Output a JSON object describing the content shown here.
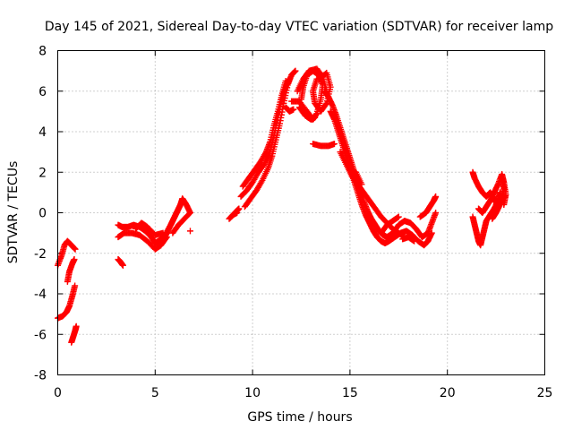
{
  "chart_data": {
    "type": "scatter",
    "title": "Day 145 of 2021, Sidereal Day-to-day VTEC variation (SDTVAR) for receiver lamp",
    "xlabel": "GPS time / hours",
    "ylabel": "SDTVAR / TECUs",
    "xlim": [
      0,
      25
    ],
    "ylim": [
      -8,
      8
    ],
    "xticks": [
      0,
      5,
      10,
      15,
      20,
      25
    ],
    "yticks": [
      -8,
      -6,
      -4,
      -2,
      0,
      2,
      4,
      6,
      8
    ],
    "xtick_labels": [
      "0",
      "5",
      "10",
      "15",
      "20",
      "25"
    ],
    "ytick_labels": [
      "-8",
      "-6",
      "-4",
      "-2",
      "0",
      "2",
      "4",
      "6",
      "8"
    ],
    "grid": true,
    "marker": "plus",
    "series": [
      {
        "name": "SDTVAR",
        "color": "#ff0000",
        "tracks": [
          [
            [
              0.0,
              -2.6
            ],
            [
              0.2,
              -2.1
            ],
            [
              0.35,
              -1.6
            ],
            [
              0.5,
              -1.4
            ],
            [
              0.7,
              -1.6
            ],
            [
              0.9,
              -1.8
            ]
          ],
          [
            [
              0.0,
              -5.2
            ],
            [
              0.25,
              -5.1
            ],
            [
              0.45,
              -4.9
            ],
            [
              0.6,
              -4.6
            ],
            [
              0.75,
              -4.1
            ],
            [
              0.88,
              -3.6
            ]
          ],
          [
            [
              0.5,
              -3.4
            ],
            [
              0.6,
              -2.9
            ],
            [
              0.75,
              -2.5
            ],
            [
              0.85,
              -2.3
            ]
          ],
          [
            [
              0.7,
              -6.4
            ],
            [
              0.8,
              -6.1
            ],
            [
              0.9,
              -5.8
            ],
            [
              0.95,
              -5.6
            ]
          ],
          [
            [
              3.1,
              -2.3
            ],
            [
              3.2,
              -2.4
            ],
            [
              3.35,
              -2.6
            ]
          ],
          [
            [
              3.1,
              -0.6
            ],
            [
              3.3,
              -0.7
            ],
            [
              3.6,
              -0.7
            ],
            [
              3.9,
              -0.6
            ],
            [
              4.2,
              -0.7
            ],
            [
              4.5,
              -0.9
            ],
            [
              4.8,
              -1.2
            ],
            [
              5.0,
              -1.5
            ],
            [
              5.3,
              -1.3
            ],
            [
              5.6,
              -1.0
            ]
          ],
          [
            [
              3.1,
              -1.2
            ],
            [
              3.4,
              -1.0
            ],
            [
              3.8,
              -1.0
            ],
            [
              4.2,
              -1.1
            ],
            [
              4.6,
              -1.4
            ],
            [
              5.0,
              -1.8
            ],
            [
              5.3,
              -1.6
            ],
            [
              5.6,
              -1.2
            ]
          ],
          [
            [
              4.0,
              -0.8
            ],
            [
              4.3,
              -0.5
            ],
            [
              4.6,
              -0.7
            ],
            [
              5.0,
              -1.1
            ],
            [
              5.4,
              -1.0
            ]
          ],
          [
            [
              5.5,
              -1.2
            ],
            [
              5.7,
              -0.8
            ],
            [
              5.9,
              -0.4
            ],
            [
              6.1,
              0.0
            ],
            [
              6.3,
              0.4
            ],
            [
              6.4,
              0.7
            ],
            [
              6.6,
              0.4
            ],
            [
              6.8,
              0.0
            ],
            [
              6.5,
              -0.3
            ],
            [
              6.2,
              -0.6
            ],
            [
              5.9,
              -1.0
            ]
          ],
          [
            [
              5.2,
              -1.5
            ],
            [
              5.5,
              -1.1
            ],
            [
              5.8,
              -0.6
            ],
            [
              6.0,
              -0.2
            ],
            [
              6.2,
              0.2
            ],
            [
              6.4,
              0.6
            ]
          ],
          [
            [
              6.8,
              -0.9
            ]
          ],
          [
            [
              8.8,
              -0.3
            ],
            [
              9.0,
              -0.1
            ],
            [
              9.2,
              0.1
            ],
            [
              9.3,
              0.2
            ]
          ],
          [
            [
              9.0,
              -0.1
            ],
            [
              9.2,
              0.0
            ]
          ],
          [
            [
              9.6,
              0.3
            ],
            [
              9.9,
              0.7
            ],
            [
              10.2,
              1.1
            ],
            [
              10.5,
              1.6
            ],
            [
              10.8,
              2.2
            ],
            [
              11.0,
              2.8
            ],
            [
              11.2,
              3.6
            ],
            [
              11.4,
              4.4
            ],
            [
              11.6,
              5.4
            ],
            [
              11.8,
              6.3
            ],
            [
              12.0,
              6.8
            ],
            [
              12.2,
              7.0
            ]
          ],
          [
            [
              9.4,
              0.8
            ],
            [
              9.7,
              1.1
            ],
            [
              10.0,
              1.5
            ],
            [
              10.3,
              2.0
            ],
            [
              10.6,
              2.4
            ],
            [
              10.9,
              3.0
            ],
            [
              11.1,
              3.8
            ],
            [
              11.3,
              4.7
            ],
            [
              11.5,
              5.6
            ],
            [
              11.7,
              6.2
            ],
            [
              11.9,
              6.6
            ]
          ],
          [
            [
              9.5,
              1.3
            ],
            [
              9.8,
              1.7
            ],
            [
              10.1,
              2.1
            ],
            [
              10.4,
              2.5
            ],
            [
              10.7,
              3.0
            ],
            [
              10.9,
              3.5
            ],
            [
              11.1,
              4.3
            ],
            [
              11.3,
              5.0
            ],
            [
              11.5,
              5.8
            ],
            [
              11.7,
              6.5
            ]
          ],
          [
            [
              11.7,
              5.2
            ],
            [
              11.9,
              5.0
            ],
            [
              12.1,
              5.1
            ]
          ],
          [
            [
              12.0,
              5.5
            ],
            [
              12.4,
              5.5
            ],
            [
              12.8,
              5.0
            ],
            [
              13.1,
              4.6
            ],
            [
              13.3,
              4.9
            ],
            [
              13.5,
              5.6
            ],
            [
              13.6,
              6.3
            ],
            [
              13.4,
              6.8
            ],
            [
              13.1,
              7.0
            ],
            [
              12.8,
              6.8
            ],
            [
              12.6,
              6.2
            ],
            [
              12.5,
              5.6
            ]
          ],
          [
            [
              12.3,
              6.0
            ],
            [
              12.6,
              6.6
            ],
            [
              12.9,
              7.0
            ],
            [
              13.3,
              7.1
            ],
            [
              13.6,
              6.7
            ],
            [
              13.8,
              6.0
            ]
          ],
          [
            [
              12.4,
              5.2
            ],
            [
              12.7,
              4.8
            ],
            [
              13.0,
              4.6
            ],
            [
              13.2,
              4.7
            ]
          ],
          [
            [
              13.7,
              6.0
            ],
            [
              13.9,
              5.7
            ],
            [
              14.1,
              5.3
            ],
            [
              14.3,
              4.8
            ],
            [
              14.5,
              4.2
            ],
            [
              14.7,
              3.6
            ],
            [
              14.9,
              3.0
            ],
            [
              15.1,
              2.4
            ],
            [
              15.3,
              1.8
            ],
            [
              15.5,
              1.2
            ],
            [
              15.7,
              0.6
            ],
            [
              15.9,
              0.1
            ],
            [
              16.1,
              -0.3
            ],
            [
              16.3,
              -0.6
            ],
            [
              16.5,
              -0.9
            ],
            [
              16.7,
              -1.1
            ],
            [
              16.9,
              -1.2
            ],
            [
              17.2,
              -1.0
            ],
            [
              17.5,
              -0.6
            ],
            [
              17.8,
              -0.4
            ],
            [
              18.1,
              -0.5
            ],
            [
              18.4,
              -0.8
            ],
            [
              18.7,
              -1.2
            ],
            [
              19.0,
              -1.0
            ],
            [
              19.2,
              -0.5
            ],
            [
              19.4,
              0.0
            ]
          ],
          [
            [
              14.0,
              5.0
            ],
            [
              14.2,
              4.6
            ],
            [
              14.4,
              4.0
            ],
            [
              14.6,
              3.4
            ],
            [
              14.8,
              2.8
            ],
            [
              15.0,
              2.2
            ],
            [
              15.2,
              1.6
            ],
            [
              15.4,
              1.0
            ],
            [
              15.6,
              0.4
            ],
            [
              15.8,
              -0.1
            ],
            [
              16.0,
              -0.5
            ],
            [
              16.2,
              -0.9
            ],
            [
              16.4,
              -1.2
            ],
            [
              16.6,
              -1.4
            ],
            [
              16.8,
              -1.5
            ],
            [
              17.0,
              -1.4
            ],
            [
              17.3,
              -1.2
            ],
            [
              17.6,
              -1.0
            ],
            [
              17.9,
              -0.9
            ],
            [
              18.2,
              -1.1
            ],
            [
              18.5,
              -1.4
            ],
            [
              18.8,
              -1.6
            ],
            [
              19.0,
              -1.4
            ],
            [
              19.2,
              -1.0
            ]
          ],
          [
            [
              14.5,
              3.0
            ],
            [
              14.8,
              2.4
            ],
            [
              15.1,
              1.8
            ],
            [
              15.4,
              1.4
            ],
            [
              15.7,
              1.0
            ],
            [
              16.0,
              0.6
            ],
            [
              16.3,
              0.2
            ],
            [
              16.6,
              -0.2
            ],
            [
              16.9,
              -0.5
            ],
            [
              17.2,
              -0.8
            ],
            [
              17.5,
              -1.0
            ],
            [
              17.8,
              -1.2
            ]
          ],
          [
            [
              13.1,
              3.4
            ],
            [
              13.5,
              3.3
            ],
            [
              13.9,
              3.3
            ],
            [
              14.2,
              3.4
            ]
          ],
          [
            [
              13.4,
              6.6
            ],
            [
              13.8,
              6.9
            ],
            [
              14.0,
              6.2
            ],
            [
              13.8,
              5.4
            ],
            [
              13.5,
              5.0
            ],
            [
              13.2,
              5.4
            ],
            [
              13.1,
              6.0
            ],
            [
              13.3,
              6.6
            ]
          ],
          [
            [
              15.0,
              2.1
            ],
            [
              15.3,
              2.0
            ],
            [
              15.6,
              1.4
            ]
          ],
          [
            [
              16.6,
              -1.0
            ],
            [
              16.9,
              -0.6
            ],
            [
              17.2,
              -0.4
            ],
            [
              17.5,
              -0.2
            ]
          ],
          [
            [
              18.6,
              -0.2
            ],
            [
              18.9,
              0.0
            ],
            [
              19.1,
              0.3
            ],
            [
              19.3,
              0.6
            ],
            [
              19.4,
              0.8
            ]
          ],
          [
            [
              17.7,
              -1.3
            ],
            [
              18.0,
              -1.2
            ],
            [
              18.3,
              -1.4
            ]
          ],
          [
            [
              21.3,
              2.0
            ],
            [
              21.4,
              1.7
            ],
            [
              21.6,
              1.3
            ],
            [
              21.8,
              1.0
            ],
            [
              22.0,
              0.8
            ],
            [
              22.2,
              1.0
            ],
            [
              22.4,
              0.7
            ],
            [
              22.6,
              0.3
            ],
            [
              22.8,
              0.7
            ],
            [
              22.9,
              1.2
            ],
            [
              22.8,
              1.7
            ]
          ],
          [
            [
              21.3,
              -0.2
            ],
            [
              21.4,
              -0.6
            ],
            [
              21.5,
              -1.0
            ],
            [
              21.6,
              -1.4
            ],
            [
              21.7,
              -1.6
            ],
            [
              21.8,
              -1.2
            ],
            [
              21.9,
              -0.8
            ],
            [
              22.0,
              -0.4
            ],
            [
              22.2,
              -0.1
            ],
            [
              22.4,
              0.2
            ],
            [
              22.6,
              0.6
            ],
            [
              22.7,
              1.0
            ]
          ],
          [
            [
              21.6,
              0.2
            ],
            [
              21.8,
              0.0
            ],
            [
              22.0,
              0.3
            ],
            [
              22.2,
              0.6
            ],
            [
              22.4,
              1.0
            ],
            [
              22.6,
              1.4
            ],
            [
              22.8,
              1.9
            ],
            [
              22.9,
              1.5
            ],
            [
              23.0,
              0.9
            ],
            [
              22.9,
              0.4
            ]
          ],
          [
            [
              22.3,
              -0.3
            ],
            [
              22.5,
              0.0
            ],
            [
              22.7,
              0.4
            ],
            [
              22.9,
              0.8
            ]
          ]
        ]
      }
    ]
  }
}
